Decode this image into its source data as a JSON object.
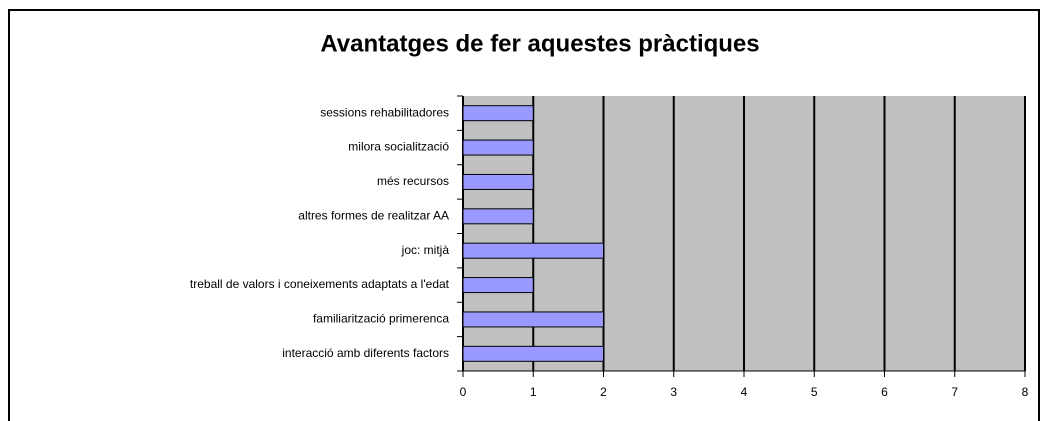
{
  "chart_data": {
    "type": "bar",
    "orientation": "horizontal",
    "title": "Avantatges de fer aquestes pràctiques",
    "categories": [
      "sessions rehabilitadores",
      "milora socialització",
      "més recursos",
      "altres formes de realitzar AA",
      "joc: mitjà",
      "treball de valors i coneixements adaptats a l'edat",
      "familiarització primerenca",
      "interacció amb diferents factors"
    ],
    "values": [
      1,
      1,
      1,
      1,
      2,
      1,
      2,
      2
    ],
    "color": "#9999ff",
    "xlim": [
      0,
      8
    ],
    "xticks": [
      0,
      1,
      2,
      3,
      4,
      5,
      6,
      7,
      8
    ],
    "grid": true
  }
}
